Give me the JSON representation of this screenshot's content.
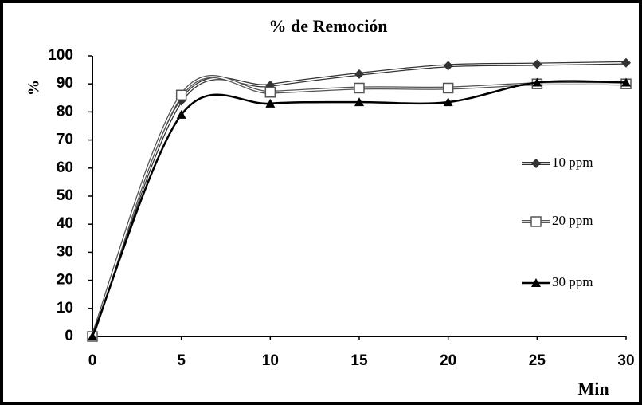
{
  "chart_data": {
    "type": "line",
    "title": "% de Remoción",
    "x_label": "Min",
    "y_label": "%",
    "x": [
      0,
      5,
      10,
      15,
      20,
      25,
      30
    ],
    "series": [
      {
        "name": "10 ppm",
        "color": "#333333",
        "marker": "diamond",
        "values": [
          0,
          84,
          89.5,
          93.5,
          96.5,
          97,
          97.5
        ]
      },
      {
        "name": "20 ppm",
        "color": "#555555",
        "marker": "square",
        "values": [
          0,
          86,
          87,
          88.5,
          88.5,
          90,
          90
        ]
      },
      {
        "name": "30 ppm",
        "color": "#000000",
        "marker": "triangle",
        "values": [
          0,
          79,
          83,
          83.5,
          83.5,
          90.5,
          90.5
        ]
      }
    ],
    "xlim": [
      0,
      30
    ],
    "xticks": [
      0,
      5,
      10,
      15,
      20,
      25,
      30
    ],
    "ylim": [
      0,
      100
    ],
    "yticks": [
      0,
      10,
      20,
      30,
      40,
      50,
      60,
      70,
      80,
      90,
      100
    ],
    "grid": false,
    "smooth": true,
    "legend": "right"
  }
}
